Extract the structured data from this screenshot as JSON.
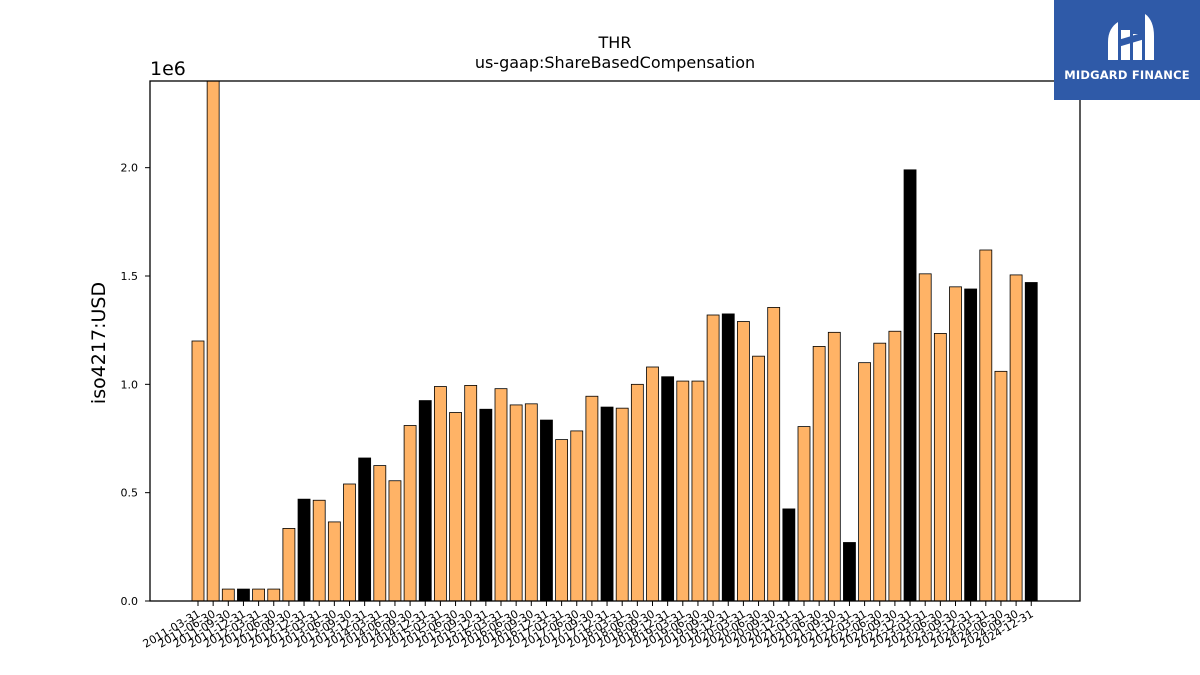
{
  "logo": {
    "text": "MIDGARD FINANCE",
    "icon": "midgard-h-icon",
    "background": "#2f5aa8"
  },
  "chart_data": {
    "type": "bar",
    "title": "THR",
    "subtitle": "us-gaap:ShareBasedCompensation",
    "ylabel": "iso4217:USD",
    "xlabel": "",
    "y_multiplier": "1e6",
    "ylim": [
      0,
      2400000
    ],
    "yticks": [
      "0.0",
      "0.5",
      "1.0",
      "1.5",
      "2.0"
    ],
    "ytick_values": [
      0,
      500000,
      1000000,
      1500000,
      2000000
    ],
    "grid": false,
    "legend": "none",
    "colors": {
      "quarter": "#ffb366",
      "annual": "#000000"
    },
    "categories": [
      "2011-03-31",
      "2011-06-30",
      "2011-09-30",
      "2011-12-31",
      "2012-03-31",
      "2012-06-30",
      "2012-09-30",
      "2012-12-31",
      "2013-03-31",
      "2013-06-30",
      "2013-09-30",
      "2013-12-31",
      "2014-03-31",
      "2014-06-30",
      "2014-09-30",
      "2014-12-31",
      "2015-03-31",
      "2015-06-30",
      "2015-09-30",
      "2015-12-31",
      "2016-03-31",
      "2016-06-30",
      "2016-09-30",
      "2016-12-31",
      "2017-03-31",
      "2017-06-30",
      "2017-09-30",
      "2017-12-31",
      "2018-03-31",
      "2018-06-30",
      "2018-09-30",
      "2018-12-31",
      "2019-03-31",
      "2019-06-30",
      "2019-09-30",
      "2019-12-31",
      "2020-03-31",
      "2020-06-30",
      "2020-09-30",
      "2020-12-31",
      "2021-03-31",
      "2021-06-30",
      "2021-09-30",
      "2021-12-31",
      "2022-03-31",
      "2022-06-30",
      "2022-09-30",
      "2022-12-31",
      "2023-03-31",
      "2023-06-30",
      "2023-09-30",
      "2023-12-31",
      "2024-03-31",
      "2024-06-30",
      "2024-09-30",
      "2024-12-31"
    ],
    "tick_labels": [
      "2011-03-31",
      "2011-06-30",
      "2011-09-30",
      "2011-12-31",
      "2012-03-31",
      "2012-06-30",
      "2012-09-30",
      "2012-12-31",
      "2013-03-31",
      "2013-06-30",
      "2013-09-30",
      "2013-12-31",
      "2014-03-31",
      "2014-06-30",
      "2014-09-30",
      "2014-12-31",
      "2015-03-31",
      "2015-06-30",
      "2015-09-30",
      "2015-12-31",
      "2016-03-31",
      "2016-06-30",
      "2016-09-30",
      "2016-12-31",
      "2017-03-31",
      "2017-06-30",
      "2017-09-30",
      "2017-12-31",
      "2018-03-31",
      "2018-06-30",
      "2018-09-30",
      "2018-12-31",
      "2019-03-31",
      "2019-06-30",
      "2019-09-30",
      "2019-12-31",
      "2020-03-31",
      "2020-06-30",
      "2020-09-30",
      "2020-12-31",
      "2021-03-31",
      "2021-06-30",
      "2021-09-30",
      "2021-12-31",
      "2022-03-31",
      "2022-06-30",
      "2022-09-30",
      "2022-12-31",
      "2023-03-31",
      "2023-06-30",
      "2023-09-30",
      "2023-12-31",
      "2024-03-31",
      "2024-06-30",
      "2024-09-30",
      "2024-12-31"
    ],
    "values": [
      1200000,
      2400000,
      55000,
      55000,
      55000,
      55000,
      335000,
      470000,
      465000,
      365000,
      540000,
      660000,
      625000,
      555000,
      810000,
      925000,
      990000,
      870000,
      995000,
      885000,
      980000,
      905000,
      910000,
      835000,
      745000,
      785000,
      945000,
      895000,
      890000,
      1000000,
      1080000,
      1035000,
      1015000,
      1015000,
      1320000,
      1325000,
      1290000,
      1130000,
      1355000,
      425000,
      805000,
      1175000,
      1240000,
      270000,
      1100000,
      1190000,
      1245000,
      1990000,
      1510000,
      1235000,
      1450000,
      1440000,
      1620000,
      1060000,
      1505000,
      1470000
    ],
    "is_annual": [
      false,
      false,
      false,
      true,
      false,
      false,
      false,
      true,
      false,
      false,
      false,
      true,
      false,
      false,
      false,
      true,
      false,
      false,
      false,
      true,
      false,
      false,
      false,
      true,
      false,
      false,
      false,
      true,
      false,
      false,
      false,
      true,
      false,
      false,
      false,
      true,
      false,
      false,
      false,
      true,
      false,
      false,
      false,
      true,
      false,
      false,
      false,
      true,
      false,
      false,
      false,
      true,
      false,
      false,
      false,
      true
    ]
  }
}
